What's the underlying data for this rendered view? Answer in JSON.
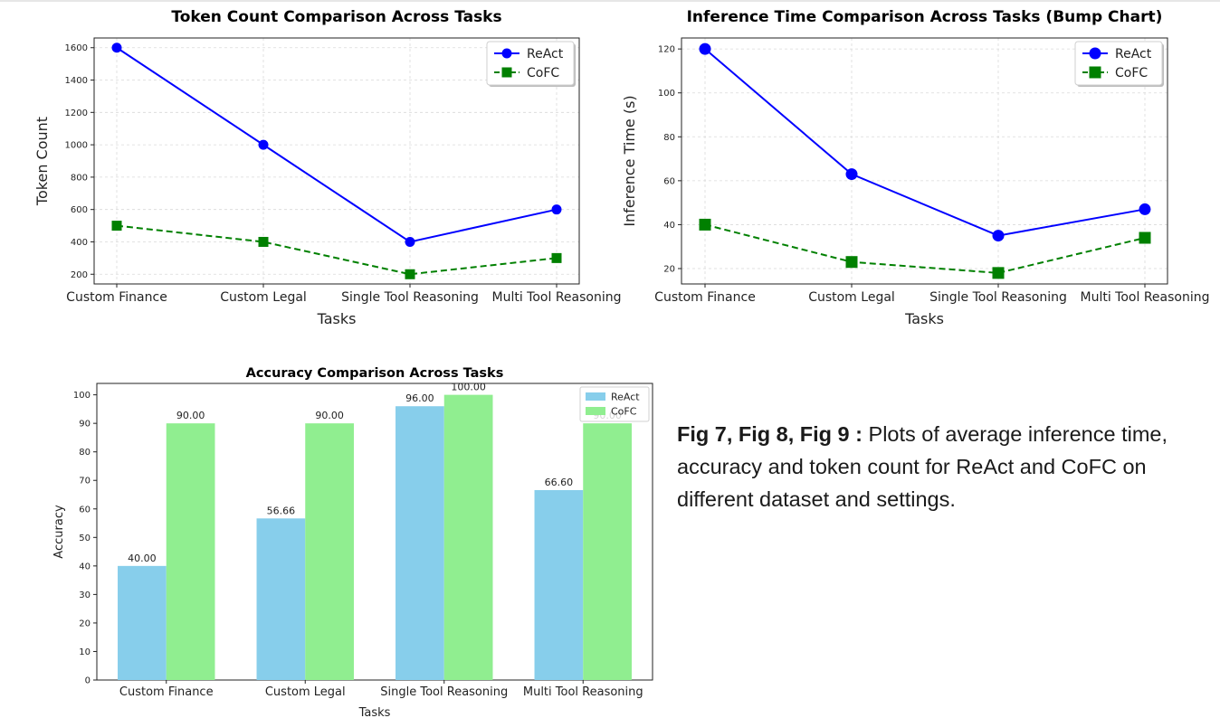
{
  "chart_data": [
    {
      "type": "line",
      "title": "Token Count Comparison Across Tasks",
      "xlabel": "Tasks",
      "ylabel": "Token Count",
      "categories": [
        "Custom Finance",
        "Custom Legal",
        "Single Tool Reasoning",
        "Multi Tool Reasoning"
      ],
      "ylim": [
        140,
        1660
      ],
      "yticks": [
        200,
        400,
        600,
        800,
        1000,
        1200,
        1400,
        1600
      ],
      "grid": true,
      "legend": "top-right",
      "series": [
        {
          "name": "ReAct",
          "values": [
            1600,
            1000,
            400,
            600
          ],
          "color": "#0000ff",
          "marker": "circle",
          "dash": false
        },
        {
          "name": "CoFC",
          "values": [
            500,
            400,
            200,
            300
          ],
          "color": "#008000",
          "marker": "square",
          "dash": true
        }
      ]
    },
    {
      "type": "line",
      "title": "Inference Time Comparison Across Tasks (Bump Chart)",
      "xlabel": "Tasks",
      "ylabel": "Inference Time (s)",
      "categories": [
        "Custom Finance",
        "Custom Legal",
        "Single Tool Reasoning",
        "Multi Tool Reasoning"
      ],
      "ylim": [
        13,
        125
      ],
      "yticks": [
        20,
        40,
        60,
        80,
        100,
        120
      ],
      "grid": true,
      "legend": "top-right",
      "series": [
        {
          "name": "ReAct",
          "values": [
            120,
            63,
            35,
            47
          ],
          "color": "#0000ff",
          "marker": "circle",
          "dash": false
        },
        {
          "name": "CoFC",
          "values": [
            40,
            23,
            18,
            34
          ],
          "color": "#008000",
          "marker": "square",
          "dash": true
        }
      ]
    },
    {
      "type": "bar",
      "title": "Accuracy Comparison Across Tasks",
      "xlabel": "Tasks",
      "ylabel": "Accuracy",
      "categories": [
        "Custom Finance",
        "Custom Legal",
        "Single Tool Reasoning",
        "Multi Tool Reasoning"
      ],
      "ylim": [
        0,
        104
      ],
      "yticks": [
        0,
        10,
        20,
        30,
        40,
        50,
        60,
        70,
        80,
        90,
        100
      ],
      "grid": false,
      "legend": "top-right",
      "series": [
        {
          "name": "ReAct",
          "values": [
            40.0,
            56.66,
            96.0,
            66.6
          ],
          "labels": [
            "40.00",
            "56.66",
            "96.00",
            "66.60"
          ],
          "color": "#87ceeb"
        },
        {
          "name": "CoFC",
          "values": [
            90.0,
            90.0,
            100.0,
            90.0
          ],
          "labels": [
            "90.00",
            "90.00",
            "100.00",
            "90.00"
          ],
          "color": "#90ee90"
        }
      ]
    }
  ],
  "caption": {
    "bold": "Fig 7, Fig 8, Fig 9 :",
    "text": " Plots of average inference time, accuracy and token count for ReAct and CoFC  on different dataset and settings."
  }
}
